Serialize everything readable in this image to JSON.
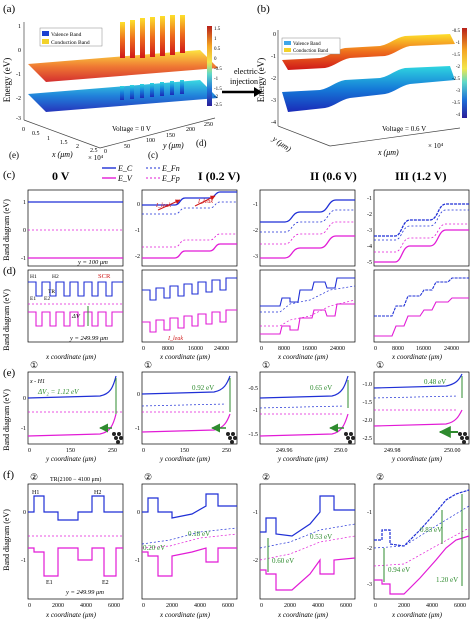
{
  "panels": {
    "a": {
      "label": "(a)",
      "ylabel": "Energy (eV)",
      "legend": [
        "Valence Band",
        "Conduction Band"
      ],
      "annot": "Voltage = 0 V",
      "xlabel": "x (μm)",
      "xmult": "× 10⁴",
      "ylabel2": "y (μm)",
      "zticks": [
        "1",
        "0",
        "-1",
        "-2",
        "-3"
      ],
      "xticks": [
        "0",
        "0.5",
        "1",
        "1.5",
        "2",
        "2.5"
      ],
      "yticks": [
        "0",
        "50",
        "100",
        "150",
        "200",
        "250"
      ],
      "cbar": [
        "1.5",
        "1",
        "0.5",
        "0",
        "-0.5",
        "-1",
        "-1.5",
        "-2",
        "-2.5"
      ],
      "callouts": [
        "(c)",
        "(d)",
        "(e)"
      ]
    },
    "arrow_text": [
      "electric",
      "injection"
    ],
    "b": {
      "label": "(b)",
      "ylabel": "Energy (eV)",
      "legend": [
        "Valence Band",
        "Conduction Band"
      ],
      "annot": "Voltage = 0.6 V",
      "xlabel": "x (μm)",
      "xmult": "× 10⁴",
      "ylabel2": "y (μm)",
      "zticks": [
        "0",
        "-1",
        "-2",
        "-3",
        "-4"
      ],
      "cbar": [
        "-0.5",
        "-1",
        "-1.5",
        "-2",
        "-2.5",
        "-3",
        "-3.5",
        "-4"
      ]
    },
    "c": {
      "label": "(c)",
      "ylabel": "Band diagram (eV)",
      "legend": [
        "E_C",
        "E_V",
        "E_Fn",
        "E_Fp"
      ],
      "headers": [
        "0 V",
        "I (0.2 V)",
        "II (0.6 V)",
        "III (1.2 V)"
      ],
      "col0_yticks": [
        "1",
        "0",
        "-1"
      ],
      "col0_note": "y = 100 μm",
      "col1_yticks": [
        "0",
        "-1",
        "-2"
      ],
      "col2_yticks": [
        "-1",
        "-2",
        "-3"
      ],
      "col3_yticks": [
        "-1",
        "-2",
        "-3",
        "-4",
        "-5"
      ],
      "ileak": "I_leak"
    },
    "d": {
      "label": "(d)",
      "ylabel": "Band diagram (eV)",
      "labels_top": [
        "H1",
        "H2",
        "SCR"
      ],
      "labels_bot": [
        "E1",
        "E2"
      ],
      "tr": "TR",
      "dv": "ΔV",
      "note": "y = 249.99 μm",
      "xlabel": "x coordinate (μm)",
      "xticks": [
        "0",
        "8000",
        "16000",
        "24000"
      ]
    },
    "e": {
      "label": "(e)",
      "ylabel": "Band diagram (eV)",
      "circ": "①",
      "xh1": "x - H1",
      "col0_dv": "ΔV₂ = 1.12 eV",
      "col0_yticks": [
        "0",
        "-1"
      ],
      "col0_xticks": [
        "0",
        "150",
        "250"
      ],
      "col1_dv": "0.92 eV",
      "col1_yticks": [
        "0",
        "-1"
      ],
      "col1_xticks": [
        "0",
        "150",
        "250"
      ],
      "col2_dv": "0.65 eV",
      "col2_yticks": [
        "-0.5",
        "-1",
        "-1.5"
      ],
      "col2_xticks": [
        "249.96",
        "250.0"
      ],
      "col3_dv": "0.48 eV",
      "col3_yticks": [
        "-1.0",
        "-1.5",
        "-2.0",
        "-2.5"
      ],
      "col3_xticks": [
        "249.98",
        "250.00"
      ],
      "xlabel": "y coordinate (μm)"
    },
    "f": {
      "label": "(f)",
      "ylabel": "Band diagram (eV)",
      "circ": "②",
      "tr": "TR(2100 − 4100 μm)",
      "labels": [
        "H1",
        "H2",
        "E1",
        "E2"
      ],
      "note": "y = 249.99 μm",
      "col0_yticks": [
        "0",
        "-1"
      ],
      "col1_vals": [
        "0.20 eV",
        "0.18 eV"
      ],
      "col1_yticks": [
        "0",
        "-1"
      ],
      "col2_vals": [
        "0.60 eV",
        "0.53 eV"
      ],
      "col2_yticks": [
        "-1",
        "-2"
      ],
      "col3_vals": [
        "0.94 eV",
        "0.83 eV",
        "1.20 eV"
      ],
      "col3_yticks": [
        "-1",
        "-2",
        "-3"
      ],
      "xticks": [
        "0",
        "2000",
        "4000",
        "6000"
      ],
      "xlabel": "x coordinate (μm)"
    }
  },
  "colors": {
    "ec": "#1f2fd6",
    "ev": "#e21bd6",
    "green": "#2e8b2e",
    "red": "#d01818"
  }
}
